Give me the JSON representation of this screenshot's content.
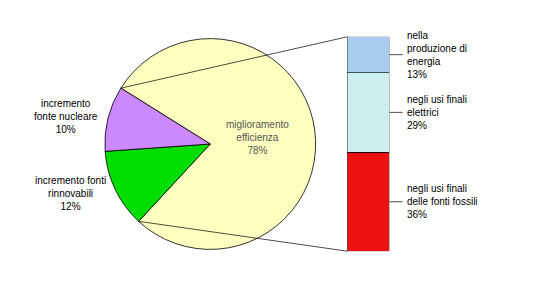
{
  "chart_data": [
    {
      "type": "pie",
      "categories": [
        "miglioramento\nefficienza\n78%",
        "incremento fonti\nrinnovabili\n12%",
        "incremento\nfonte nucleare\n10%"
      ],
      "values": [
        78,
        12,
        10
      ],
      "colors": [
        "#ffffc0",
        "#00dd00",
        "#cc88ff"
      ]
    },
    {
      "type": "bar",
      "stacked": true,
      "categories": [
        null
      ],
      "series": [
        {
          "name": "negli usi finali\ndelle fonti fossili\n36%",
          "color": "#ee1111",
          "values": [
            36
          ]
        },
        {
          "name": "negli usi finali\nelettrici\n29%",
          "color": "#ccf0f0",
          "values": [
            29
          ]
        },
        {
          "name": "nella\nproduzione di\nenergia\n13%",
          "color": "#aaccee",
          "values": [
            13
          ]
        }
      ],
      "ylim": [
        0,
        78
      ],
      "tick_labels": false
    }
  ]
}
